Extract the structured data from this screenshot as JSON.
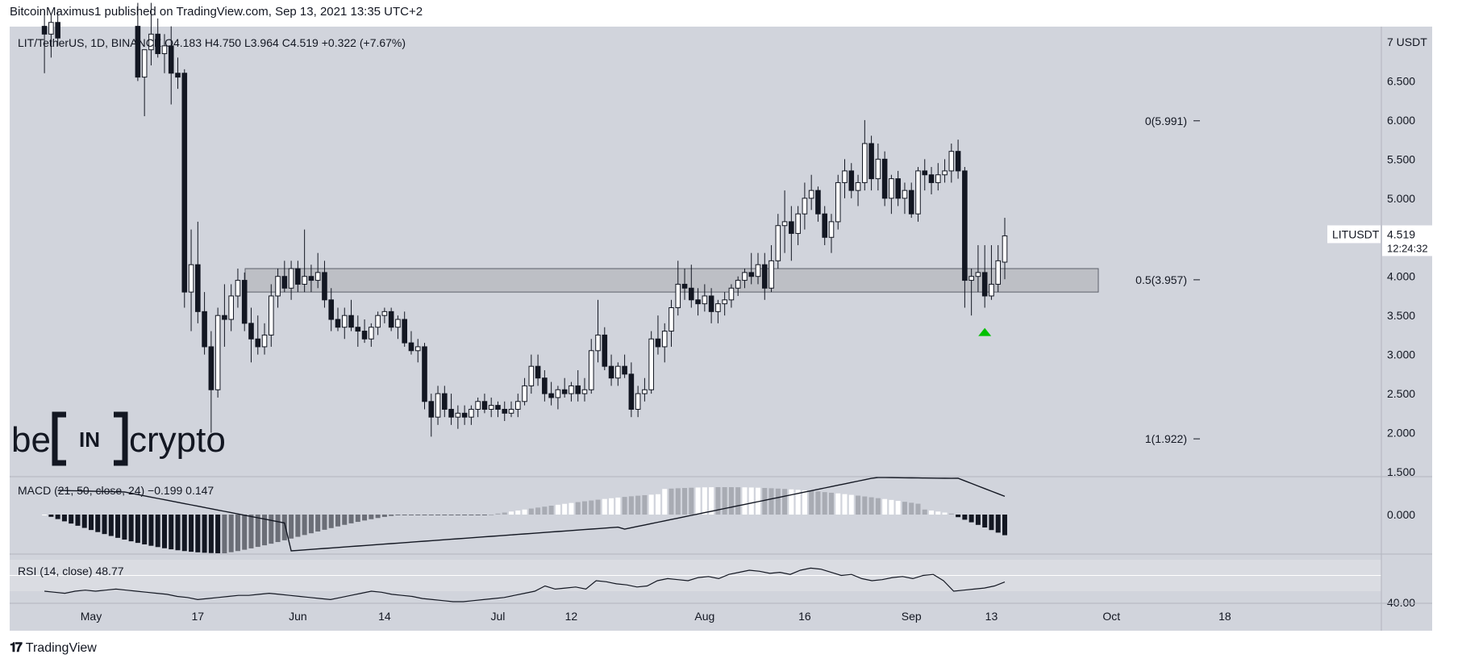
{
  "header": {
    "published": "BitcoinMaximus1 published on TradingView.com, Sep 13, 2021 13:35 UTC+2"
  },
  "footer": {
    "brand": "TradingView"
  },
  "watermark": {
    "text_left": "be",
    "text_mid": "IN",
    "text_right": "crypto"
  },
  "legend": {
    "symbol": "LIT/TetherUS, 1D, BINANCE",
    "o_label": "O",
    "o_value": "4.183",
    "h_label": "H",
    "h_value": "4.750",
    "l_label": "L",
    "l_value": "3.964",
    "c_label": "C",
    "c_value": "4.519",
    "change": "+0.322 (+7.67%)"
  },
  "price_tag": {
    "ticker": "LITUSDT",
    "price": "4.519",
    "countdown": "12:24:32"
  },
  "macd": {
    "label": "MACD (21, 50, close, 24)",
    "v1": "−0.199",
    "v2": "0.147",
    "axis": [
      "0.000"
    ]
  },
  "rsi": {
    "label": "RSI (14, close)",
    "value": "48.77",
    "axis": [
      "40.00"
    ],
    "values": [
      40,
      39,
      38,
      40,
      41,
      40,
      41,
      42,
      41,
      40,
      39,
      38,
      37,
      35,
      34,
      32,
      33,
      34,
      35,
      36,
      36,
      37,
      38,
      37,
      36,
      35,
      34,
      33,
      32,
      34,
      36,
      38,
      40,
      39,
      37,
      36,
      35,
      33,
      32,
      31,
      30,
      30,
      31,
      32,
      33,
      34,
      36,
      38,
      40,
      45,
      42,
      43,
      44,
      42,
      50,
      49,
      47,
      46,
      44,
      45,
      50,
      52,
      51,
      50,
      53,
      54,
      52,
      56,
      58,
      60,
      59,
      57,
      58,
      56,
      60,
      62,
      61,
      58,
      55,
      56,
      52,
      50,
      51,
      53,
      54,
      52,
      55,
      56,
      50,
      40,
      41,
      42,
      43,
      45,
      48.77
    ]
  },
  "chart_data": {
    "type": "candlestick",
    "symbol": "LIT/TetherUS",
    "interval": "1D",
    "exchange": "BINANCE",
    "currency": "USDT",
    "y_ticks": [
      1.5,
      2.0,
      2.5,
      3.0,
      3.5,
      4.0,
      4.5,
      5.0,
      5.5,
      6.0,
      6.5,
      7.0
    ],
    "y_tick_labels": [
      "1.500",
      "2.000",
      "2.500",
      "3.000",
      "3.500",
      "4.000",
      "4.500",
      "5.000",
      "5.500",
      "6.000",
      "6.500",
      "7 USDT"
    ],
    "y_range": [
      1.5,
      7.0
    ],
    "x_ticks": [
      "May",
      "17",
      "Jun",
      "14",
      "Jul",
      "12",
      "Aug",
      "16",
      "Sep",
      "13",
      "Oct",
      "18"
    ],
    "x_tick_days": [
      0,
      16,
      31,
      44,
      61,
      72,
      92,
      107,
      123,
      135,
      153,
      170
    ],
    "fib_levels": [
      {
        "label": "0(5.991)",
        "value": 5.991
      },
      {
        "label": "0.5(3.957)",
        "value": 3.957
      },
      {
        "label": "1(1.922)",
        "value": 1.922
      }
    ],
    "support_zone": [
      3.8,
      4.1
    ],
    "marker": {
      "type": "triangle-up",
      "color": "#00c000",
      "day": 134,
      "price": 3.3
    },
    "candles": [
      {
        "d": -7,
        "o": 7.2,
        "h": 7.4,
        "l": 6.6,
        "c": 7.1
      },
      {
        "d": -6,
        "o": 7.1,
        "h": 7.35,
        "l": 6.8,
        "c": 7.25
      },
      {
        "d": -5,
        "o": 7.25,
        "h": 7.4,
        "l": 6.95,
        "c": 7.05
      },
      {
        "d": 7,
        "o": 7.2,
        "h": 7.5,
        "l": 6.5,
        "c": 6.55
      },
      {
        "d": 8,
        "o": 6.55,
        "h": 6.9,
        "l": 6.05,
        "c": 6.9
      },
      {
        "d": 9,
        "o": 6.9,
        "h": 7.5,
        "l": 6.7,
        "c": 7.1
      },
      {
        "d": 10,
        "o": 7.1,
        "h": 7.3,
        "l": 6.8,
        "c": 6.85
      },
      {
        "d": 11,
        "o": 6.85,
        "h": 7.1,
        "l": 6.6,
        "c": 6.95
      },
      {
        "d": 12,
        "o": 6.95,
        "h": 7.2,
        "l": 6.2,
        "c": 6.6
      },
      {
        "d": 13,
        "o": 6.6,
        "h": 6.8,
        "l": 6.4,
        "c": 6.55
      },
      {
        "d": 14,
        "o": 6.6,
        "h": 6.65,
        "l": 3.6,
        "c": 3.8
      },
      {
        "d": 15,
        "o": 3.8,
        "h": 4.6,
        "l": 3.3,
        "c": 4.15
      },
      {
        "d": 16,
        "o": 4.15,
        "h": 4.7,
        "l": 3.4,
        "c": 3.55
      },
      {
        "d": 17,
        "o": 3.55,
        "h": 3.8,
        "l": 3.0,
        "c": 3.1
      },
      {
        "d": 18,
        "o": 3.1,
        "h": 3.3,
        "l": 2.0,
        "c": 2.55
      },
      {
        "d": 19,
        "o": 2.55,
        "h": 3.6,
        "l": 2.45,
        "c": 3.5
      },
      {
        "d": 20,
        "o": 3.5,
        "h": 3.9,
        "l": 3.1,
        "c": 3.45
      },
      {
        "d": 21,
        "o": 3.45,
        "h": 3.9,
        "l": 3.3,
        "c": 3.75
      },
      {
        "d": 22,
        "o": 3.75,
        "h": 4.1,
        "l": 3.6,
        "c": 3.95
      },
      {
        "d": 23,
        "o": 3.95,
        "h": 4.05,
        "l": 3.3,
        "c": 3.4
      },
      {
        "d": 24,
        "o": 3.4,
        "h": 3.6,
        "l": 2.9,
        "c": 3.2
      },
      {
        "d": 25,
        "o": 3.2,
        "h": 3.5,
        "l": 3.0,
        "c": 3.1
      },
      {
        "d": 26,
        "o": 3.1,
        "h": 3.4,
        "l": 3.0,
        "c": 3.25
      },
      {
        "d": 27,
        "o": 3.25,
        "h": 3.9,
        "l": 3.1,
        "c": 3.75
      },
      {
        "d": 28,
        "o": 3.75,
        "h": 4.1,
        "l": 3.6,
        "c": 4.0
      },
      {
        "d": 29,
        "o": 4.0,
        "h": 4.2,
        "l": 3.8,
        "c": 3.85
      },
      {
        "d": 30,
        "o": 3.85,
        "h": 4.2,
        "l": 3.7,
        "c": 4.1
      },
      {
        "d": 31,
        "o": 4.1,
        "h": 4.2,
        "l": 3.8,
        "c": 3.9
      },
      {
        "d": 32,
        "o": 3.9,
        "h": 4.6,
        "l": 3.8,
        "c": 4.0
      },
      {
        "d": 33,
        "o": 4.0,
        "h": 4.15,
        "l": 3.8,
        "c": 3.95
      },
      {
        "d": 34,
        "o": 3.95,
        "h": 4.3,
        "l": 3.85,
        "c": 4.05
      },
      {
        "d": 35,
        "o": 4.05,
        "h": 4.2,
        "l": 3.6,
        "c": 3.7
      },
      {
        "d": 36,
        "o": 3.7,
        "h": 3.85,
        "l": 3.3,
        "c": 3.45
      },
      {
        "d": 37,
        "o": 3.45,
        "h": 3.6,
        "l": 3.3,
        "c": 3.35
      },
      {
        "d": 38,
        "o": 3.35,
        "h": 3.6,
        "l": 3.2,
        "c": 3.5
      },
      {
        "d": 39,
        "o": 3.5,
        "h": 3.7,
        "l": 3.3,
        "c": 3.35
      },
      {
        "d": 40,
        "o": 3.35,
        "h": 3.5,
        "l": 3.1,
        "c": 3.3
      },
      {
        "d": 41,
        "o": 3.3,
        "h": 3.45,
        "l": 3.15,
        "c": 3.2
      },
      {
        "d": 42,
        "o": 3.2,
        "h": 3.4,
        "l": 3.1,
        "c": 3.35
      },
      {
        "d": 43,
        "o": 3.35,
        "h": 3.55,
        "l": 3.25,
        "c": 3.5
      },
      {
        "d": 44,
        "o": 3.5,
        "h": 3.6,
        "l": 3.4,
        "c": 3.55
      },
      {
        "d": 45,
        "o": 3.55,
        "h": 3.6,
        "l": 3.3,
        "c": 3.35
      },
      {
        "d": 46,
        "o": 3.35,
        "h": 3.5,
        "l": 3.2,
        "c": 3.45
      },
      {
        "d": 47,
        "o": 3.45,
        "h": 3.55,
        "l": 3.1,
        "c": 3.15
      },
      {
        "d": 48,
        "o": 3.15,
        "h": 3.3,
        "l": 3.0,
        "c": 3.05
      },
      {
        "d": 49,
        "o": 3.05,
        "h": 3.2,
        "l": 2.9,
        "c": 3.1
      },
      {
        "d": 50,
        "o": 3.1,
        "h": 3.15,
        "l": 2.3,
        "c": 2.4
      },
      {
        "d": 51,
        "o": 2.4,
        "h": 2.5,
        "l": 1.95,
        "c": 2.2
      },
      {
        "d": 52,
        "o": 2.2,
        "h": 2.6,
        "l": 2.1,
        "c": 2.5
      },
      {
        "d": 53,
        "o": 2.5,
        "h": 2.6,
        "l": 2.2,
        "c": 2.3
      },
      {
        "d": 54,
        "o": 2.3,
        "h": 2.5,
        "l": 2.1,
        "c": 2.2
      },
      {
        "d": 55,
        "o": 2.2,
        "h": 2.35,
        "l": 2.05,
        "c": 2.25
      },
      {
        "d": 56,
        "o": 2.25,
        "h": 2.35,
        "l": 2.1,
        "c": 2.2
      },
      {
        "d": 57,
        "o": 2.2,
        "h": 2.35,
        "l": 2.1,
        "c": 2.3
      },
      {
        "d": 58,
        "o": 2.3,
        "h": 2.45,
        "l": 2.2,
        "c": 2.4
      },
      {
        "d": 59,
        "o": 2.4,
        "h": 2.5,
        "l": 2.25,
        "c": 2.3
      },
      {
        "d": 60,
        "o": 2.3,
        "h": 2.45,
        "l": 2.2,
        "c": 2.35
      },
      {
        "d": 61,
        "o": 2.35,
        "h": 2.4,
        "l": 2.2,
        "c": 2.3
      },
      {
        "d": 62,
        "o": 2.3,
        "h": 2.4,
        "l": 2.15,
        "c": 2.25
      },
      {
        "d": 63,
        "o": 2.25,
        "h": 2.4,
        "l": 2.2,
        "c": 2.3
      },
      {
        "d": 64,
        "o": 2.3,
        "h": 2.5,
        "l": 2.2,
        "c": 2.4
      },
      {
        "d": 65,
        "o": 2.4,
        "h": 2.7,
        "l": 2.35,
        "c": 2.6
      },
      {
        "d": 66,
        "o": 2.6,
        "h": 3.0,
        "l": 2.5,
        "c": 2.85
      },
      {
        "d": 67,
        "o": 2.85,
        "h": 3.0,
        "l": 2.6,
        "c": 2.7
      },
      {
        "d": 68,
        "o": 2.7,
        "h": 2.8,
        "l": 2.4,
        "c": 2.5
      },
      {
        "d": 69,
        "o": 2.5,
        "h": 2.65,
        "l": 2.35,
        "c": 2.45
      },
      {
        "d": 70,
        "o": 2.45,
        "h": 2.6,
        "l": 2.3,
        "c": 2.55
      },
      {
        "d": 71,
        "o": 2.55,
        "h": 2.7,
        "l": 2.45,
        "c": 2.5
      },
      {
        "d": 72,
        "o": 2.5,
        "h": 2.65,
        "l": 2.4,
        "c": 2.6
      },
      {
        "d": 73,
        "o": 2.6,
        "h": 2.8,
        "l": 2.4,
        "c": 2.5
      },
      {
        "d": 74,
        "o": 2.5,
        "h": 2.7,
        "l": 2.4,
        "c": 2.55
      },
      {
        "d": 75,
        "o": 2.55,
        "h": 3.2,
        "l": 2.5,
        "c": 3.05
      },
      {
        "d": 76,
        "o": 3.05,
        "h": 3.7,
        "l": 2.9,
        "c": 3.25
      },
      {
        "d": 77,
        "o": 3.25,
        "h": 3.35,
        "l": 2.8,
        "c": 2.85
      },
      {
        "d": 78,
        "o": 2.85,
        "h": 3.0,
        "l": 2.6,
        "c": 2.7
      },
      {
        "d": 79,
        "o": 2.7,
        "h": 2.9,
        "l": 2.6,
        "c": 2.85
      },
      {
        "d": 80,
        "o": 2.85,
        "h": 3.0,
        "l": 2.7,
        "c": 2.75
      },
      {
        "d": 81,
        "o": 2.75,
        "h": 2.9,
        "l": 2.2,
        "c": 2.3
      },
      {
        "d": 82,
        "o": 2.3,
        "h": 2.6,
        "l": 2.2,
        "c": 2.5
      },
      {
        "d": 83,
        "o": 2.5,
        "h": 2.7,
        "l": 2.4,
        "c": 2.55
      },
      {
        "d": 84,
        "o": 2.55,
        "h": 3.3,
        "l": 2.5,
        "c": 3.2
      },
      {
        "d": 85,
        "o": 3.2,
        "h": 3.5,
        "l": 3.0,
        "c": 3.1
      },
      {
        "d": 86,
        "o": 3.1,
        "h": 3.4,
        "l": 2.9,
        "c": 3.3
      },
      {
        "d": 87,
        "o": 3.3,
        "h": 3.7,
        "l": 3.1,
        "c": 3.6
      },
      {
        "d": 88,
        "o": 3.6,
        "h": 4.2,
        "l": 3.5,
        "c": 3.9
      },
      {
        "d": 89,
        "o": 3.9,
        "h": 4.1,
        "l": 3.7,
        "c": 3.85
      },
      {
        "d": 90,
        "o": 3.85,
        "h": 4.15,
        "l": 3.6,
        "c": 3.7
      },
      {
        "d": 91,
        "o": 3.7,
        "h": 3.85,
        "l": 3.5,
        "c": 3.65
      },
      {
        "d": 92,
        "o": 3.65,
        "h": 3.9,
        "l": 3.55,
        "c": 3.75
      },
      {
        "d": 93,
        "o": 3.75,
        "h": 3.85,
        "l": 3.4,
        "c": 3.55
      },
      {
        "d": 94,
        "o": 3.55,
        "h": 3.7,
        "l": 3.4,
        "c": 3.65
      },
      {
        "d": 95,
        "o": 3.65,
        "h": 3.8,
        "l": 3.5,
        "c": 3.7
      },
      {
        "d": 96,
        "o": 3.7,
        "h": 3.9,
        "l": 3.6,
        "c": 3.85
      },
      {
        "d": 97,
        "o": 3.85,
        "h": 4.0,
        "l": 3.75,
        "c": 3.95
      },
      {
        "d": 98,
        "o": 3.95,
        "h": 4.1,
        "l": 3.85,
        "c": 4.05
      },
      {
        "d": 99,
        "o": 4.05,
        "h": 4.3,
        "l": 3.9,
        "c": 4.0
      },
      {
        "d": 100,
        "o": 4.0,
        "h": 4.3,
        "l": 3.9,
        "c": 4.15
      },
      {
        "d": 101,
        "o": 4.15,
        "h": 4.3,
        "l": 3.7,
        "c": 3.85
      },
      {
        "d": 102,
        "o": 3.85,
        "h": 4.4,
        "l": 3.8,
        "c": 4.2
      },
      {
        "d": 103,
        "o": 4.2,
        "h": 4.8,
        "l": 4.1,
        "c": 4.65
      },
      {
        "d": 104,
        "o": 4.65,
        "h": 5.1,
        "l": 4.3,
        "c": 4.7
      },
      {
        "d": 105,
        "o": 4.7,
        "h": 4.9,
        "l": 4.2,
        "c": 4.55
      },
      {
        "d": 106,
        "o": 4.55,
        "h": 4.9,
        "l": 4.4,
        "c": 4.8
      },
      {
        "d": 107,
        "o": 4.8,
        "h": 5.2,
        "l": 4.6,
        "c": 5.0
      },
      {
        "d": 108,
        "o": 5.0,
        "h": 5.3,
        "l": 4.85,
        "c": 5.1
      },
      {
        "d": 109,
        "o": 5.1,
        "h": 5.15,
        "l": 4.7,
        "c": 4.8
      },
      {
        "d": 110,
        "o": 4.8,
        "h": 4.9,
        "l": 4.4,
        "c": 4.5
      },
      {
        "d": 111,
        "o": 4.5,
        "h": 4.8,
        "l": 4.3,
        "c": 4.7
      },
      {
        "d": 112,
        "o": 4.7,
        "h": 5.3,
        "l": 4.6,
        "c": 5.2
      },
      {
        "d": 113,
        "o": 5.2,
        "h": 5.5,
        "l": 5.0,
        "c": 5.35
      },
      {
        "d": 114,
        "o": 5.35,
        "h": 5.45,
        "l": 5.0,
        "c": 5.1
      },
      {
        "d": 115,
        "o": 5.1,
        "h": 5.3,
        "l": 4.9,
        "c": 5.2
      },
      {
        "d": 116,
        "o": 5.2,
        "h": 6.0,
        "l": 5.1,
        "c": 5.7
      },
      {
        "d": 117,
        "o": 5.7,
        "h": 5.8,
        "l": 5.1,
        "c": 5.25
      },
      {
        "d": 118,
        "o": 5.25,
        "h": 5.7,
        "l": 5.1,
        "c": 5.5
      },
      {
        "d": 119,
        "o": 5.5,
        "h": 5.6,
        "l": 4.9,
        "c": 5.0
      },
      {
        "d": 120,
        "o": 5.0,
        "h": 5.3,
        "l": 4.8,
        "c": 5.25
      },
      {
        "d": 121,
        "o": 5.25,
        "h": 5.35,
        "l": 4.9,
        "c": 5.0
      },
      {
        "d": 122,
        "o": 5.0,
        "h": 5.2,
        "l": 4.8,
        "c": 5.1
      },
      {
        "d": 123,
        "o": 5.1,
        "h": 5.2,
        "l": 4.75,
        "c": 4.8
      },
      {
        "d": 124,
        "o": 4.8,
        "h": 5.4,
        "l": 4.7,
        "c": 5.35
      },
      {
        "d": 125,
        "o": 5.35,
        "h": 5.5,
        "l": 5.1,
        "c": 5.3
      },
      {
        "d": 126,
        "o": 5.3,
        "h": 5.4,
        "l": 5.05,
        "c": 5.2
      },
      {
        "d": 127,
        "o": 5.2,
        "h": 5.45,
        "l": 5.1,
        "c": 5.3
      },
      {
        "d": 128,
        "o": 5.3,
        "h": 5.5,
        "l": 5.2,
        "c": 5.35
      },
      {
        "d": 129,
        "o": 5.35,
        "h": 5.7,
        "l": 5.2,
        "c": 5.6
      },
      {
        "d": 130,
        "o": 5.6,
        "h": 5.75,
        "l": 5.25,
        "c": 5.35
      },
      {
        "d": 131,
        "o": 5.35,
        "h": 5.4,
        "l": 3.6,
        "c": 3.95
      },
      {
        "d": 132,
        "o": 3.95,
        "h": 4.1,
        "l": 3.5,
        "c": 4.0
      },
      {
        "d": 133,
        "o": 4.0,
        "h": 4.4,
        "l": 3.8,
        "c": 4.05
      },
      {
        "d": 134,
        "o": 4.05,
        "h": 4.4,
        "l": 3.6,
        "c": 3.75
      },
      {
        "d": 135,
        "o": 3.75,
        "h": 4.4,
        "l": 3.7,
        "c": 3.9
      },
      {
        "d": 136,
        "o": 3.9,
        "h": 4.4,
        "l": 3.8,
        "c": 4.2
      },
      {
        "d": 137,
        "o": 4.183,
        "h": 4.75,
        "l": 3.964,
        "c": 4.519
      }
    ]
  }
}
